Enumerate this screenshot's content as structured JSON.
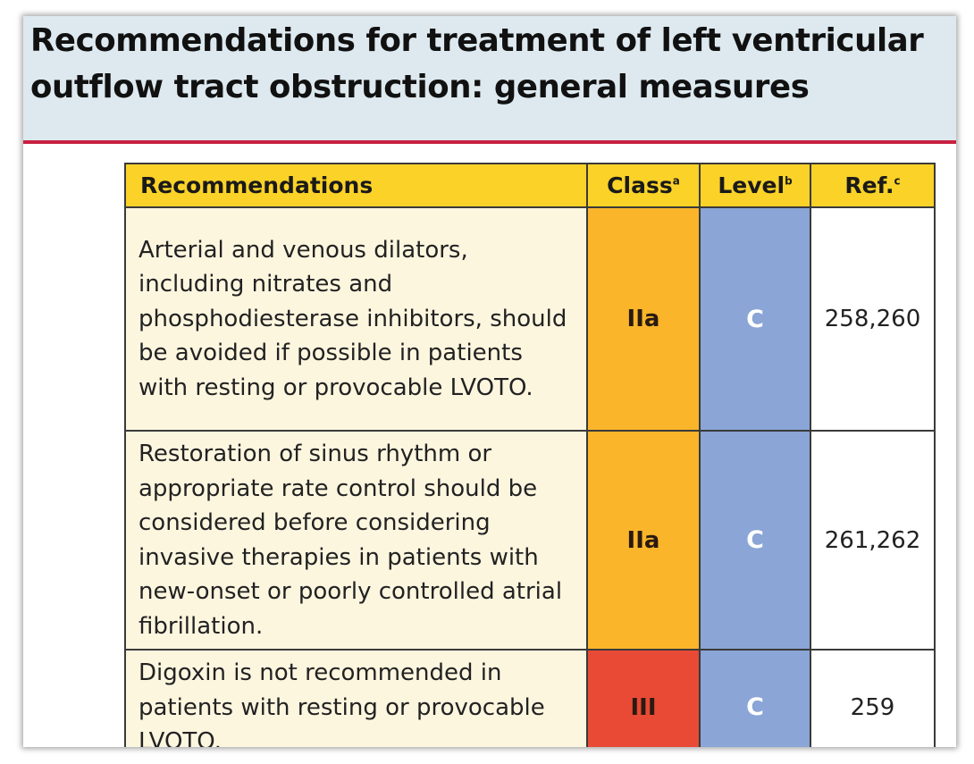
{
  "title": {
    "line1": "Recommendations for treatment of left ventricular",
    "line2": "outflow tract obstruction: general measures"
  },
  "table": {
    "headers": {
      "recommendations": "Recommendations",
      "class": "Class",
      "class_sup": "a",
      "level": "Level",
      "level_sup": "b",
      "ref": "Ref.",
      "ref_sup": "c"
    },
    "rows": [
      {
        "text": "Arterial and venous dilators, including nitrates and phosphodiesterase inhibitors, should be avoided if possible in patients with resting or provocable LVOTO.",
        "class": "IIa",
        "level": "C",
        "ref": "258,260",
        "class_color": "#fbb52a"
      },
      {
        "text": "Restoration of sinus rhythm or appropriate rate control should be considered before considering invasive therapies in patients with new-onset or poorly controlled atrial fibrillation.",
        "class": "IIa",
        "level": "C",
        "ref": "261,262",
        "class_color": "#fbb52a"
      },
      {
        "text": "Digoxin is not recommended in patients with resting or provocable LVOTO.",
        "class": "III",
        "level": "C",
        "ref": "259",
        "class_color": "#e84a35"
      }
    ]
  },
  "colors": {
    "header_bg": "#dde9ef",
    "accent_rule": "#c8203f",
    "table_header_bg": "#fbd227",
    "text_cell_bg": "#fdf6df",
    "level_bg": "#8aa5d6"
  }
}
